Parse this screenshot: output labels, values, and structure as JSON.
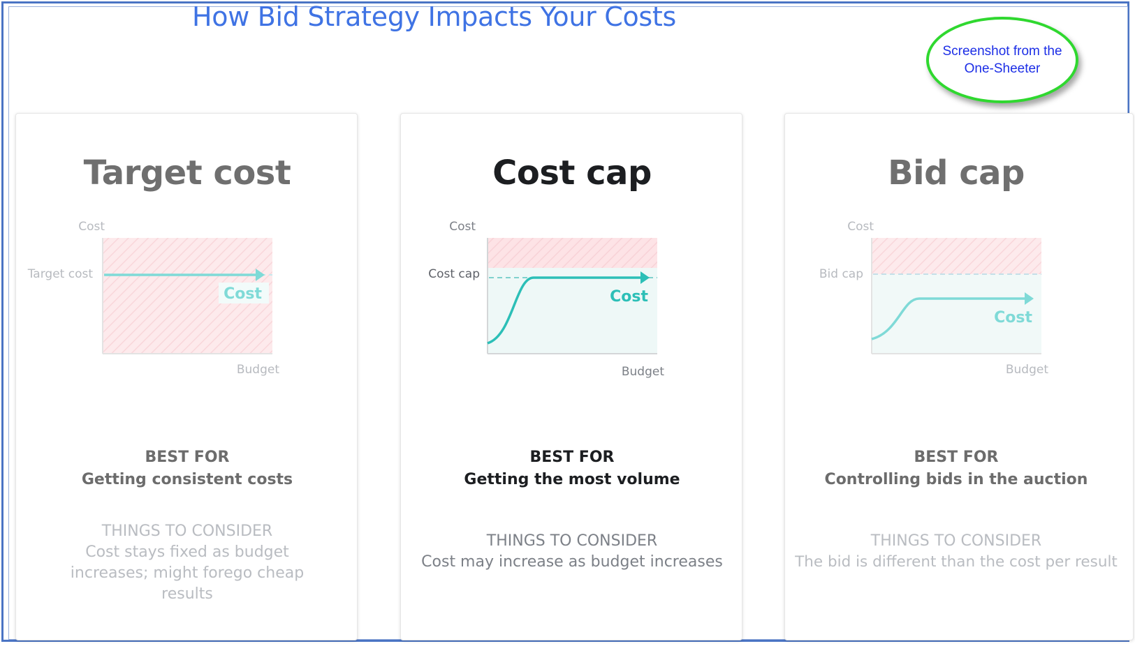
{
  "header": {
    "title": "How Bid Strategy Impacts Your Costs"
  },
  "callout": {
    "text": "Screenshot from the One-Sheeter"
  },
  "colors": {
    "teal_active": "#2cbfb7",
    "teal_muted": "#7fdad7",
    "danger_zone": "#fde8ea",
    "safe_zone": "#eef8f7",
    "callout_border": "#2fd82f",
    "title_blue": "#3f73e4"
  },
  "cards": [
    {
      "title": "Target cost",
      "state": "muted",
      "chart": {
        "y_label": "Cost",
        "x_label": "Budget",
        "threshold_label": "Target cost",
        "line_label": "Cost"
      },
      "best_for_heading": "BEST FOR",
      "best_for": "Getting consistent costs",
      "consider_heading": "THINGS TO CONSIDER",
      "consider": "Cost stays fixed as budget increases; might forego cheap results"
    },
    {
      "title": "Cost cap",
      "state": "active",
      "chart": {
        "y_label": "Cost",
        "x_label": "Budget",
        "threshold_label": "Cost cap",
        "line_label": "Cost"
      },
      "best_for_heading": "BEST FOR",
      "best_for": "Getting the most volume",
      "consider_heading": "THINGS TO CONSIDER",
      "consider": "Cost may increase as budget increases"
    },
    {
      "title": "Bid cap",
      "state": "muted",
      "chart": {
        "y_label": "Cost",
        "x_label": "Budget",
        "threshold_label": "Bid cap",
        "line_label": "Cost"
      },
      "best_for_heading": "BEST FOR",
      "best_for": "Controlling bids in the auction",
      "consider_heading": "THINGS TO CONSIDER",
      "consider": "The bid is different than the cost per result"
    }
  ]
}
